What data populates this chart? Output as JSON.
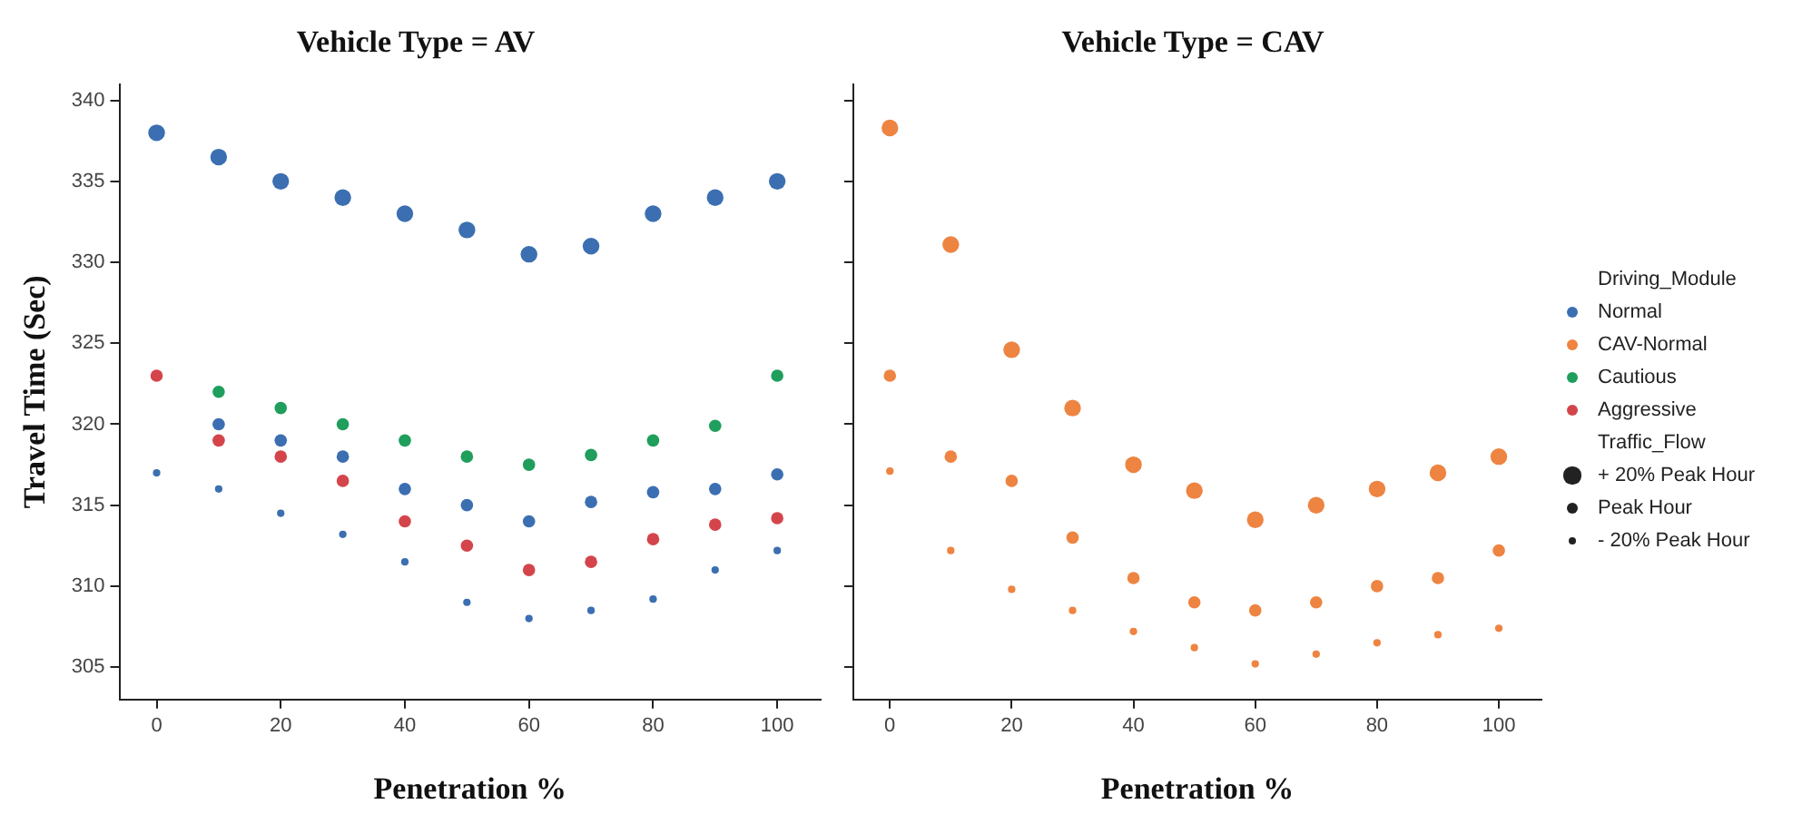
{
  "chart_data": [
    {
      "type": "bubble",
      "title": "Vehicle Type = AV",
      "xlabel": "Penetration %",
      "ylabel": "Travel Time (Sec)",
      "xlim": [
        -6,
        107
      ],
      "xticks": [
        0,
        20,
        40,
        60,
        80,
        100
      ],
      "ylim": [
        303,
        341
      ],
      "yticks": [
        305,
        310,
        315,
        320,
        325,
        330,
        335,
        340
      ],
      "grid": false,
      "legend": "right",
      "series": [
        {
          "name": "Normal",
          "color": "#3b6fb1",
          "x": [
            0,
            10,
            20,
            30,
            40,
            50,
            60,
            70,
            80,
            90,
            100,
            10,
            20,
            30,
            40,
            50,
            60,
            70,
            80,
            90,
            100,
            0,
            10,
            20,
            30,
            40,
            50,
            60,
            70,
            80,
            90,
            100
          ],
          "values": [
            338,
            336.5,
            335,
            334,
            333,
            332,
            330.5,
            331,
            333,
            334,
            335,
            320,
            319,
            318,
            316,
            315,
            314,
            315.2,
            315.8,
            316,
            316.9,
            317,
            316,
            314.5,
            313.2,
            311.5,
            309,
            308,
            308.5,
            309.2,
            311,
            312.2
          ],
          "sizes": [
            1,
            1,
            1,
            1,
            1,
            1,
            1,
            1,
            1,
            1,
            1,
            0.55,
            0.55,
            0.55,
            0.55,
            0.55,
            0.55,
            0.55,
            0.55,
            0.55,
            0.55,
            0.2,
            0.2,
            0.2,
            0.2,
            0.2,
            0.2,
            0.2,
            0.2,
            0.2,
            0.2,
            0.2
          ]
        },
        {
          "name": "Cautious",
          "color": "#1f9e5c",
          "x": [
            10,
            20,
            30,
            40,
            50,
            60,
            70,
            80,
            90,
            100
          ],
          "values": [
            322,
            321,
            320,
            319,
            318,
            317.5,
            318.1,
            319,
            319.9,
            323
          ],
          "sizes": [
            0.55,
            0.55,
            0.55,
            0.55,
            0.55,
            0.55,
            0.55,
            0.55,
            0.55,
            0.55
          ]
        },
        {
          "name": "Aggressive",
          "color": "#d4454b",
          "x": [
            0,
            10,
            20,
            30,
            40,
            50,
            60,
            70,
            80,
            90,
            100
          ],
          "values": [
            323,
            319,
            318,
            316.5,
            314,
            312.5,
            311,
            311.5,
            312.9,
            313.8,
            314.2
          ],
          "sizes": [
            0.55,
            0.55,
            0.55,
            0.55,
            0.55,
            0.55,
            0.55,
            0.55,
            0.55,
            0.55,
            0.55
          ]
        }
      ]
    },
    {
      "type": "bubble",
      "title": "Vehicle Type = CAV",
      "xlabel": "Penetration %",
      "xlim": [
        -6,
        107
      ],
      "xticks": [
        0,
        20,
        40,
        60,
        80,
        100
      ],
      "ylim": [
        303,
        341
      ],
      "yticks": [
        305,
        310,
        315,
        320,
        325,
        330,
        335,
        340
      ],
      "tick_labels": "x",
      "grid": false,
      "legend": "right",
      "legend_title": "Driving_Module",
      "annotations": [
        "Traffic_Flow"
      ],
      "size_legend": [
        {
          "value": 1,
          "label": "+ 20% Peak Hour"
        },
        {
          "value": 0.55,
          "label": "Peak Hour"
        },
        {
          "value": 0.2,
          "label": "- 20% Peak Hour"
        }
      ],
      "series": [
        {
          "name": "CAV-Normal",
          "color": "#ee8441",
          "x": [
            0,
            10,
            20,
            30,
            40,
            50,
            60,
            70,
            80,
            90,
            100,
            0,
            10,
            20,
            30,
            40,
            50,
            60,
            70,
            80,
            90,
            100,
            0,
            10,
            20,
            30,
            40,
            50,
            60,
            70,
            80,
            90,
            100
          ],
          "values": [
            338.3,
            331.1,
            324.6,
            321,
            317.5,
            315.9,
            314.1,
            315,
            316,
            317,
            318,
            323,
            318,
            316.5,
            313,
            310.5,
            309,
            308.5,
            309,
            310,
            310.5,
            312.2,
            317.1,
            312.2,
            309.8,
            308.5,
            307.2,
            306.2,
            305.2,
            305.8,
            306.5,
            307,
            307.4
          ],
          "sizes": [
            1,
            1,
            1,
            1,
            1,
            1,
            1,
            1,
            1,
            1,
            1,
            0.55,
            0.55,
            0.55,
            0.55,
            0.55,
            0.55,
            0.55,
            0.55,
            0.55,
            0.55,
            0.55,
            0.2,
            0.2,
            0.2,
            0.2,
            0.2,
            0.2,
            0.2,
            0.2,
            0.2,
            0.2,
            0.2
          ]
        }
      ]
    }
  ]
}
